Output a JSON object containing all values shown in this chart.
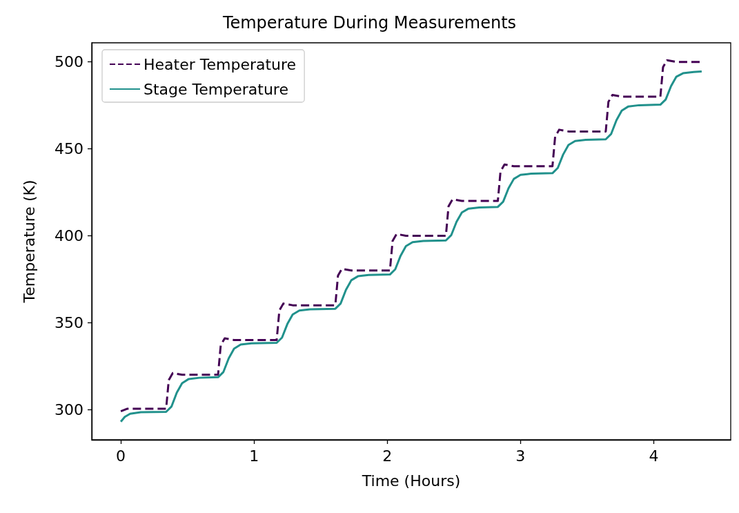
{
  "chart_data": {
    "type": "line",
    "title": "Temperature During Measurements",
    "xlabel": "Time (Hours)",
    "ylabel": "Temperature (K)",
    "xlim": [
      -0.218,
      4.578
    ],
    "xticks": [
      0,
      1,
      2,
      3,
      4
    ],
    "ylim": [
      282.6,
      511
    ],
    "yticks": [
      300,
      350,
      400,
      450,
      500
    ],
    "grid": false,
    "legend": "top left",
    "marker": "none",
    "series": [
      {
        "name": "Heater Temperature",
        "color": "#440154",
        "line_style": "dashed",
        "x": [
          0,
          0.05,
          0.34,
          0.36,
          0.39,
          0.46,
          0.73,
          0.75,
          0.78,
          0.85,
          1.17,
          1.19,
          1.22,
          1.29,
          1.61,
          1.63,
          1.66,
          1.73,
          2.02,
          2.04,
          2.07,
          2.14,
          2.44,
          2.46,
          2.49,
          2.56,
          2.83,
          2.85,
          2.88,
          2.95,
          3.24,
          3.26,
          3.29,
          3.36,
          3.64,
          3.66,
          3.69,
          3.76,
          4.05,
          4.07,
          4.1,
          4.17,
          4.36
        ],
        "values": [
          299,
          300.5,
          300.5,
          317,
          321,
          320,
          320,
          337,
          341,
          340,
          340,
          357,
          361,
          360,
          360,
          377,
          381,
          380,
          380,
          397,
          401,
          400,
          400,
          417,
          421,
          420,
          420,
          437,
          441,
          440,
          440,
          457,
          461,
          460,
          460,
          477,
          481,
          480,
          480,
          497,
          501,
          500,
          500
        ]
      },
      {
        "name": "Stage Temperature",
        "color": "#21918c",
        "line_style": "solid",
        "x": [
          0,
          0.03,
          0.07,
          0.15,
          0.34,
          0.38,
          0.42,
          0.46,
          0.51,
          0.59,
          0.73,
          0.77,
          0.81,
          0.85,
          0.9,
          0.98,
          1.17,
          1.21,
          1.25,
          1.29,
          1.34,
          1.42,
          1.61,
          1.65,
          1.69,
          1.73,
          1.78,
          1.86,
          2.02,
          2.06,
          2.1,
          2.14,
          2.19,
          2.27,
          2.44,
          2.48,
          2.52,
          2.56,
          2.61,
          2.69,
          2.83,
          2.87,
          2.91,
          2.95,
          3,
          3.08,
          3.24,
          3.28,
          3.32,
          3.36,
          3.41,
          3.49,
          3.64,
          3.68,
          3.72,
          3.76,
          3.81,
          3.89,
          4.05,
          4.09,
          4.13,
          4.17,
          4.22,
          4.3,
          4.36
        ],
        "values": [
          293,
          295.8,
          297.6,
          298.5,
          298.7,
          301.7,
          309.7,
          315.2,
          317.6,
          318.3,
          318.6,
          321.6,
          329.5,
          335,
          337.4,
          338.1,
          338.4,
          341.4,
          349.2,
          354.7,
          357,
          357.7,
          358,
          361,
          368.9,
          374.4,
          376.7,
          377.4,
          377.7,
          380.7,
          388.5,
          394,
          396.3,
          397,
          397.3,
          400.3,
          408,
          413.4,
          415.6,
          416.3,
          416.6,
          419.6,
          427.3,
          432.7,
          435,
          435.7,
          436,
          439,
          446.7,
          452.2,
          454.5,
          455.2,
          455.5,
          458.5,
          466.4,
          472,
          474.4,
          475.1,
          475.4,
          478.4,
          486.1,
          491.5,
          493.5,
          494.2,
          494.5
        ]
      }
    ]
  }
}
